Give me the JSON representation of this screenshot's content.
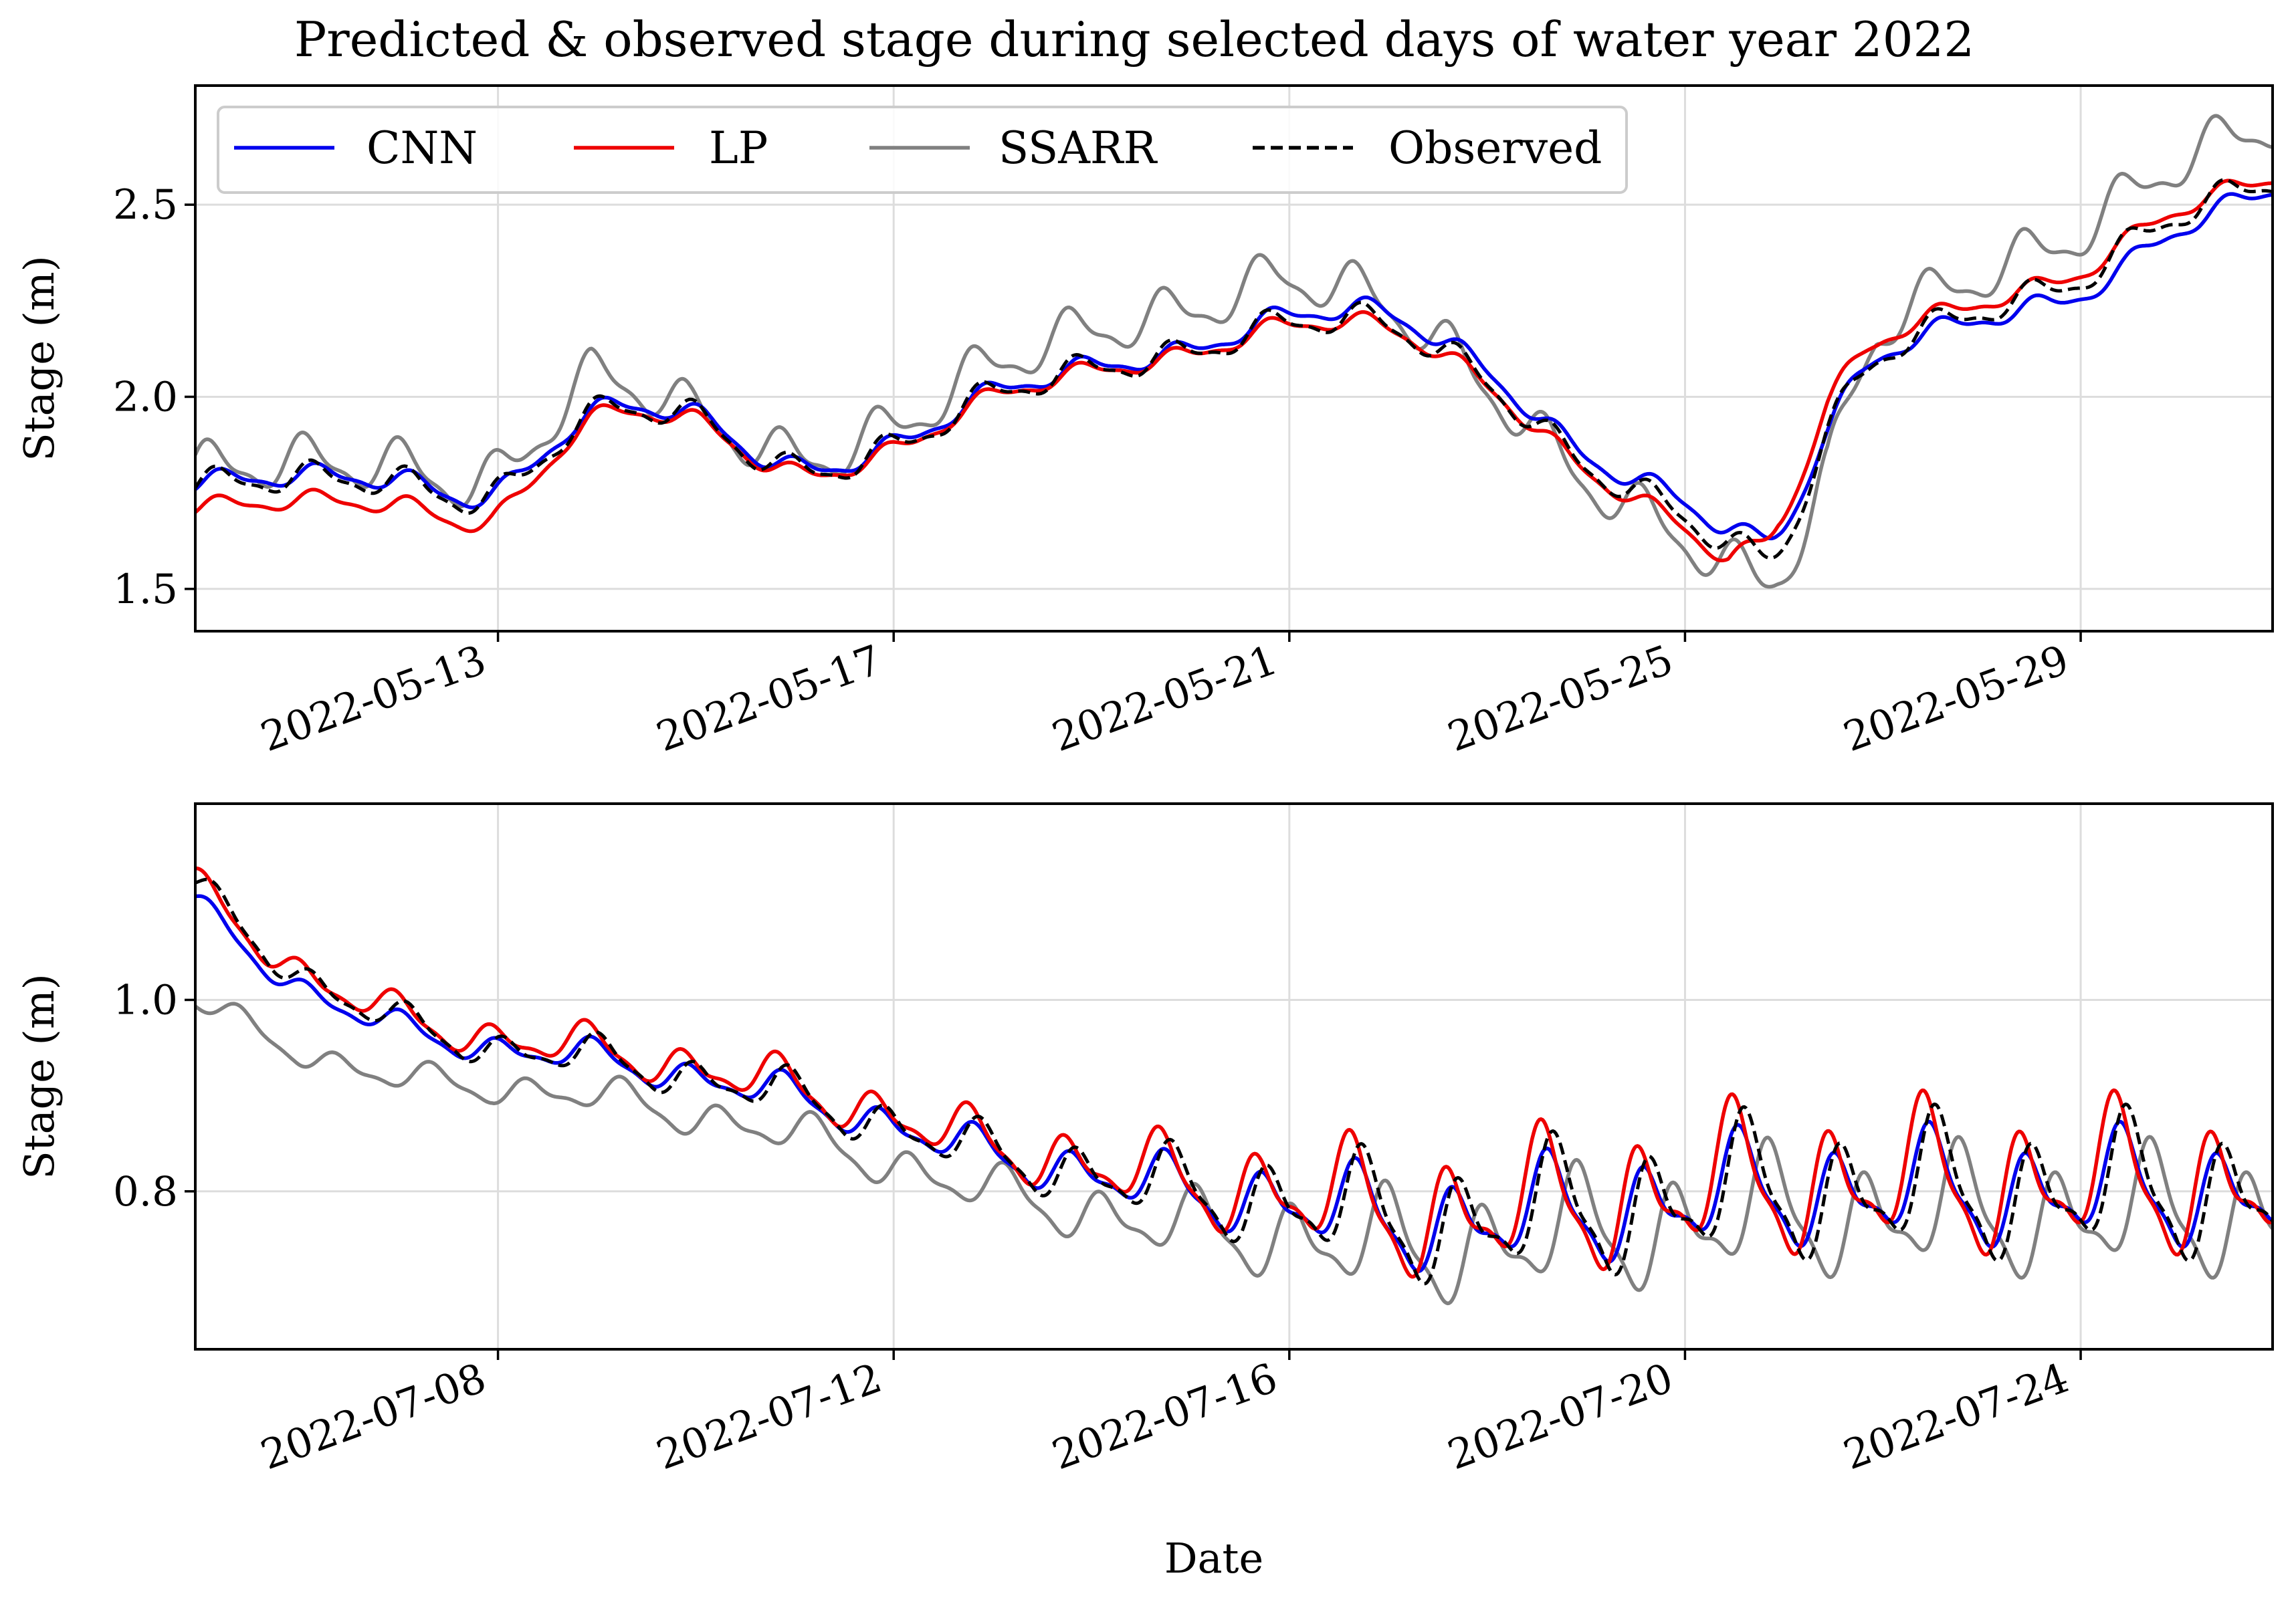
{
  "chart_data": {
    "type": "line",
    "title": "Predicted & observed stage during selected days of water year 2022",
    "xlabel": "Date",
    "legend": {
      "placement": "upper-left (top panel)",
      "entries": [
        {
          "label": "CNN",
          "color": "#0000ee",
          "style": "solid"
        },
        {
          "label": "LP",
          "color": "#ee0000",
          "style": "solid"
        },
        {
          "label": "SSARR",
          "color": "#808080",
          "style": "solid"
        },
        {
          "label": "Observed",
          "color": "#000000",
          "style": "dashed"
        }
      ]
    },
    "panels": [
      {
        "id": "may",
        "ylabel": "Stage (m)",
        "xlim_days": [
          0,
          21
        ],
        "ylim": [
          1.39,
          2.81
        ],
        "yticks": [
          1.5,
          2.0,
          2.5
        ],
        "ytick_labels": [
          "1.5",
          "2.0",
          "2.5"
        ],
        "xticks_days": [
          3.06,
          7.06,
          11.06,
          15.06,
          19.06
        ],
        "xtick_labels": [
          "2022-05-13",
          "2022-05-17",
          "2022-05-21",
          "2022-05-25",
          "2022-05-29"
        ],
        "base": {
          "days": [
            0,
            1,
            2,
            3,
            4,
            5,
            6,
            7,
            8,
            9,
            10,
            11,
            12,
            13,
            14,
            15,
            15.5,
            16,
            16.5,
            17,
            18,
            19,
            20,
            21
          ],
          "values": [
            1.77,
            1.79,
            1.78,
            1.74,
            1.95,
            1.95,
            1.81,
            1.86,
            2.0,
            2.07,
            2.11,
            2.19,
            2.19,
            2.05,
            1.83,
            1.7,
            1.62,
            1.6,
            1.9,
            2.1,
            2.22,
            2.3,
            2.47,
            2.56
          ]
        },
        "series": [
          {
            "name": "CNN",
            "amp": 0.025,
            "lag": 0.05,
            "offset": [
              [
                0,
                0.005
              ],
              [
                10,
                0.005
              ],
              [
                12,
                0.03
              ],
              [
                14,
                0.025
              ],
              [
                16,
                0.045
              ],
              [
                16.5,
                0.01
              ],
              [
                18,
                -0.02
              ],
              [
                19.5,
                -0.05
              ],
              [
                21,
                -0.02
              ]
            ]
          },
          {
            "name": "LP",
            "amp": 0.022,
            "lag": 0.03,
            "offset": [
              [
                0,
                -0.06
              ],
              [
                3,
                -0.06
              ],
              [
                4,
                -0.01
              ],
              [
                10,
                -0.005
              ],
              [
                14,
                -0.01
              ],
              [
                15.5,
                -0.04
              ],
              [
                16,
                0.07
              ],
              [
                16.5,
                0.08
              ],
              [
                17,
                0.04
              ],
              [
                18,
                0.02
              ],
              [
                21,
                0.01
              ]
            ]
          },
          {
            "name": "SSARR",
            "amp": 0.06,
            "lag": -0.08,
            "offset": [
              [
                0,
                0.04
              ],
              [
                3,
                0.04
              ],
              [
                4,
                0.1
              ],
              [
                5,
                0.01
              ],
              [
                7,
                0.05
              ],
              [
                9,
                0.1
              ],
              [
                11,
                0.12
              ],
              [
                13,
                -0.01
              ],
              [
                15,
                -0.06
              ],
              [
                16,
                -0.06
              ],
              [
                16.5,
                -0.1
              ],
              [
                17,
                0.07
              ],
              [
                18,
                0.09
              ],
              [
                19,
                0.12
              ],
              [
                21,
                0.15
              ]
            ]
          },
          {
            "name": "Observed",
            "amp": 0.035,
            "lag": 0,
            "offset": [
              [
                0,
                0
              ],
              [
                21,
                0
              ]
            ]
          }
        ]
      },
      {
        "id": "july",
        "ylabel": "Stage (m)",
        "xlim_days": [
          0,
          21
        ],
        "ylim": [
          0.635,
          1.205
        ],
        "yticks": [
          0.8,
          1.0
        ],
        "ytick_labels": [
          "0.8",
          "1.0"
        ],
        "xticks_days": [
          3.06,
          7.06,
          11.06,
          15.06,
          19.06
        ],
        "xtick_labels": [
          "2022-07-08",
          "2022-07-12",
          "2022-07-16",
          "2022-07-20",
          "2022-07-24"
        ],
        "base": {
          "days": [
            0,
            1,
            2,
            3,
            4,
            5,
            6,
            7,
            8,
            9,
            10,
            11,
            12,
            13,
            14,
            15,
            16,
            17,
            18,
            19,
            20,
            21
          ],
          "values": [
            1.12,
            1.03,
            0.98,
            0.95,
            0.94,
            0.92,
            0.9,
            0.87,
            0.84,
            0.82,
            0.8,
            0.79,
            0.77,
            0.77,
            0.78,
            0.79,
            0.8,
            0.8,
            0.8,
            0.8,
            0.8,
            0.8
          ]
        },
        "series": [
          {
            "name": "CNN",
            "amp_scale": 0.8,
            "lag": -0.06,
            "offset": [
              [
                0,
                -0.02
              ],
              [
                3,
                0
              ],
              [
                21,
                0
              ]
            ]
          },
          {
            "name": "LP",
            "amp_scale": 1.05,
            "lag": -0.12,
            "offset": [
              [
                0,
                0
              ],
              [
                3,
                0.01
              ],
              [
                21,
                0.01
              ]
            ]
          },
          {
            "name": "SSARR",
            "amp_scale": 0.9,
            "lag": 0.24,
            "offset": [
              [
                0,
                -0.12
              ],
              [
                1,
                -0.08
              ],
              [
                3,
                -0.04
              ],
              [
                8,
                -0.04
              ],
              [
                10,
                -0.04
              ],
              [
                13,
                -0.025
              ],
              [
                21,
                -0.025
              ]
            ]
          },
          {
            "name": "Observed",
            "amp_scale": 1.0,
            "lag": 0,
            "offset": [
              [
                0,
                0
              ],
              [
                21,
                0
              ]
            ]
          }
        ],
        "amplitude": [
          [
            0,
            0.012
          ],
          [
            3,
            0.015
          ],
          [
            8,
            0.022
          ],
          [
            10,
            0.032
          ],
          [
            12,
            0.048
          ],
          [
            15,
            0.055
          ],
          [
            21,
            0.055
          ]
        ]
      }
    ]
  }
}
